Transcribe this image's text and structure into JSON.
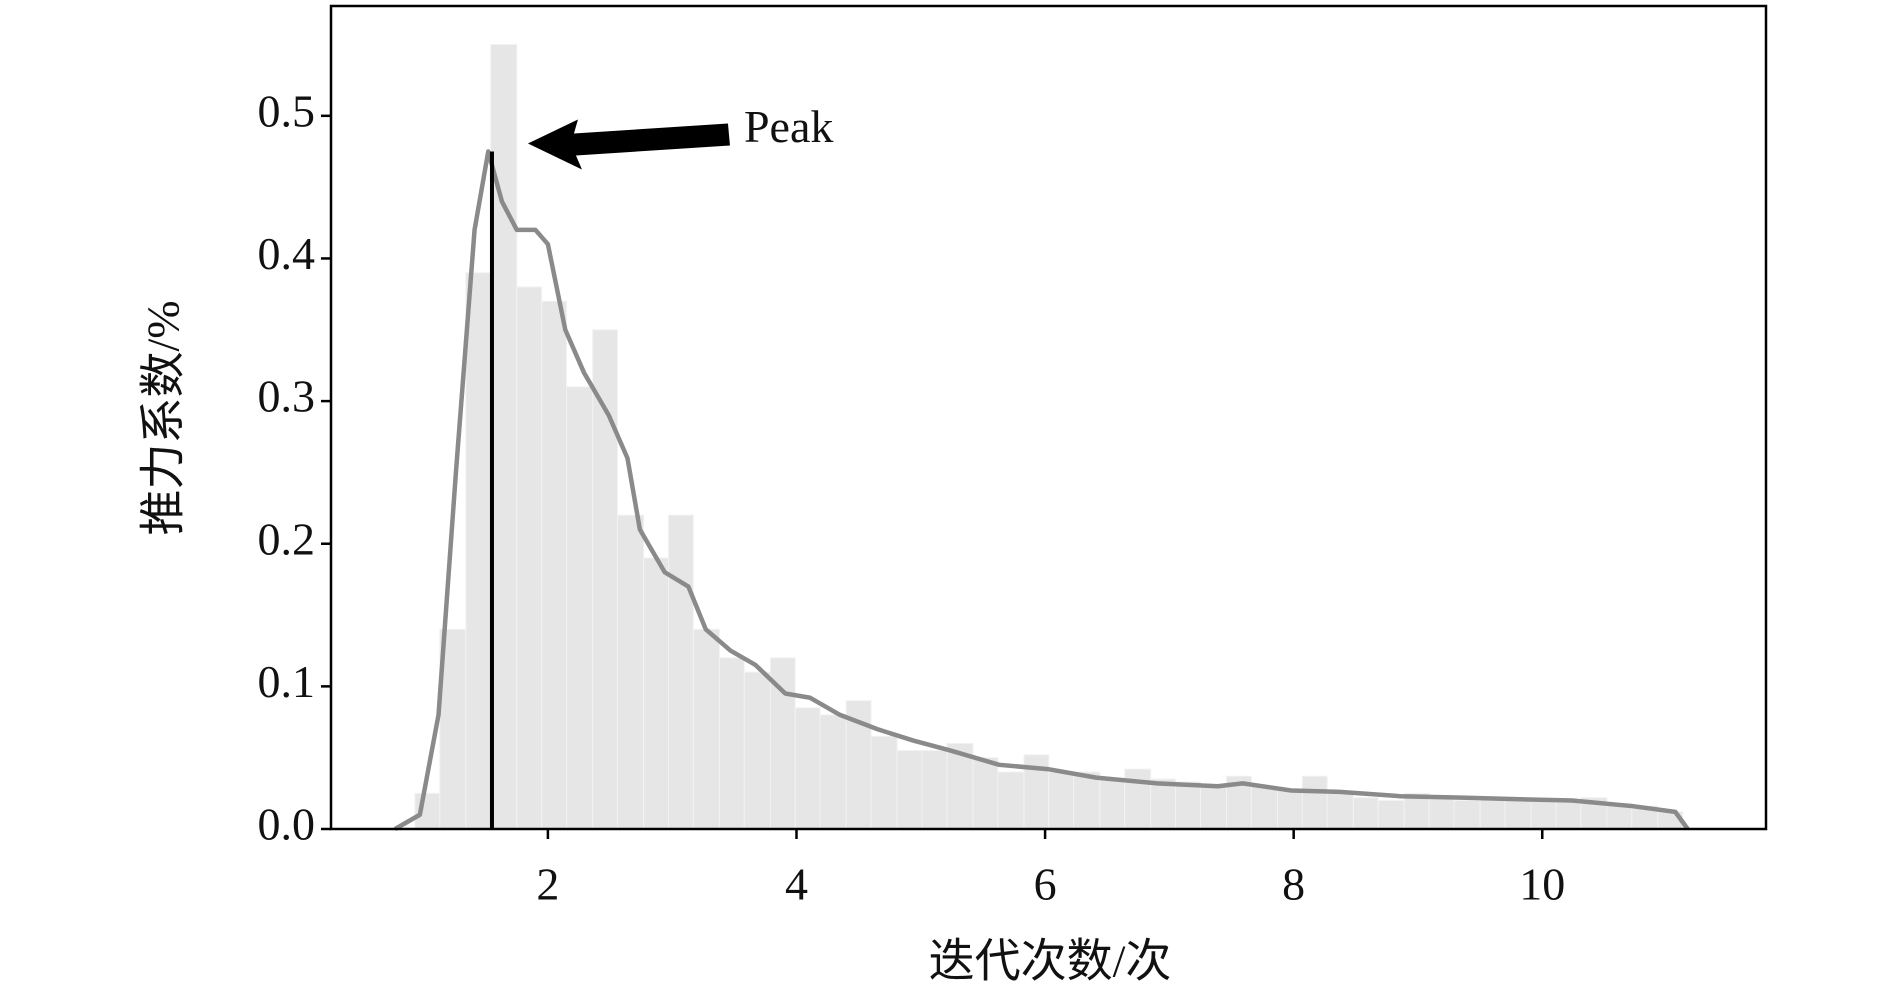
{
  "chart_data": {
    "type": "histogram",
    "xlabel": "迭代次数/次",
    "ylabel": "推力系数/%",
    "bins": [
      0.93,
      1.13,
      1.34,
      1.54,
      1.75,
      1.95,
      2.15,
      2.36,
      2.56,
      2.77,
      2.97,
      3.17,
      3.38,
      3.58,
      3.79,
      3.99,
      4.19,
      4.4,
      4.6,
      4.81,
      5.01,
      5.21,
      5.42,
      5.62,
      5.83,
      6.03,
      6.23,
      6.44,
      6.64,
      6.85,
      7.05,
      7.25,
      7.46,
      7.66,
      7.87,
      8.07,
      8.27,
      8.48,
      8.68,
      8.89,
      9.09,
      9.29,
      9.5,
      9.7,
      9.91,
      10.11,
      10.31,
      10.52,
      10.72,
      10.93,
      11.13
    ],
    "values": [
      0.025,
      0.14,
      0.39,
      0.55,
      0.38,
      0.37,
      0.31,
      0.35,
      0.22,
      0.19,
      0.22,
      0.14,
      0.12,
      0.11,
      0.12,
      0.085,
      0.08,
      0.09,
      0.065,
      0.055,
      0.055,
      0.06,
      0.05,
      0.04,
      0.052,
      0.04,
      0.04,
      0.035,
      0.042,
      0.035,
      0.033,
      0.03,
      0.037,
      0.03,
      0.028,
      0.037,
      0.025,
      0.022,
      0.02,
      0.025,
      0.022,
      0.02,
      0.022,
      0.02,
      0.02,
      0.02,
      0.022,
      0.018,
      0.016,
      0.012
    ],
    "color": "#e6e6e6",
    "kde": {
      "color": "#8a8a8a",
      "x": [
        0.77,
        0.97,
        1.12,
        1.26,
        1.41,
        1.52,
        1.63,
        1.75,
        1.9,
        2.0,
        2.14,
        2.29,
        2.49,
        2.64,
        2.74,
        2.94,
        3.13,
        3.27,
        3.47,
        3.67,
        3.91,
        4.11,
        4.35,
        4.65,
        4.94,
        5.24,
        5.63,
        6.02,
        6.41,
        6.9,
        7.39,
        7.59,
        7.98,
        8.37,
        8.86,
        9.35,
        9.75,
        10.24,
        10.73,
        11.07,
        11.17
      ],
      "values": [
        0.0,
        0.01,
        0.08,
        0.25,
        0.42,
        0.475,
        0.44,
        0.42,
        0.42,
        0.41,
        0.35,
        0.32,
        0.29,
        0.26,
        0.21,
        0.18,
        0.17,
        0.14,
        0.125,
        0.115,
        0.095,
        0.092,
        0.08,
        0.07,
        0.062,
        0.055,
        0.045,
        0.042,
        0.036,
        0.032,
        0.03,
        0.032,
        0.027,
        0.026,
        0.023,
        0.022,
        0.021,
        0.02,
        0.016,
        0.012,
        0.0
      ]
    },
    "peak": {
      "label": "Peak",
      "x": 1.55,
      "y": 0.475
    },
    "xlim": [
      0.255,
      11.8
    ],
    "ylim": [
      0,
      0.577
    ],
    "xticks": [
      2,
      4,
      6,
      8,
      10
    ],
    "yticks": [
      {
        "value": 0,
        "label": "0.0"
      },
      0.1,
      0.2,
      0.3,
      0.4,
      0.5
    ]
  }
}
